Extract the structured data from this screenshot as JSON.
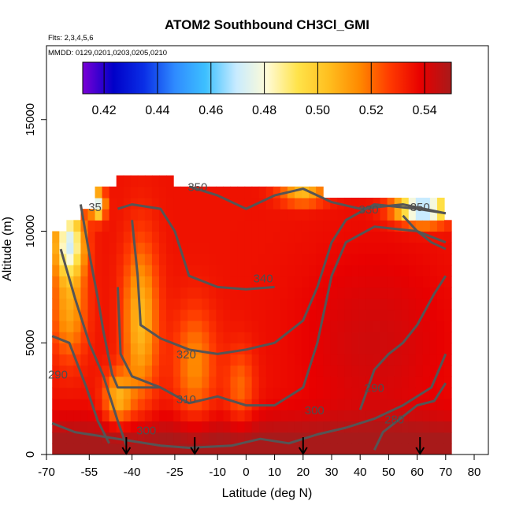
{
  "title": "ATOM2 Southbound CH3Cl_GMI",
  "flights_label": "Flts: 2,3,4,5,6",
  "dates_label": "MMDD: 0129,0201,0203,0205,0210",
  "colors": {
    "colormap": [
      "#7a00d6",
      "#0000c8",
      "#0a2fe6",
      "#2f8bff",
      "#3dc0ff",
      "#c8ebff",
      "#fffbd6",
      "#ffe34a",
      "#ffbf1f",
      "#ff8a00",
      "#ff3a00",
      "#e80000",
      "#a81a1a"
    ],
    "contour": "#555555",
    "background_fill": "#ff2a00"
  },
  "chart_data": {
    "type": "heatmap",
    "title": "ATOM2 Southbound CH3Cl_GMI",
    "xlabel": "Latitude (deg N)",
    "ylabel": "Altitude (m)",
    "xlim": [
      -70,
      85
    ],
    "ylim": [
      0,
      17500
    ],
    "x_ticks": [
      -70,
      -55,
      -40,
      -25,
      -10,
      0,
      10,
      20,
      30,
      40,
      50,
      60,
      70,
      80
    ],
    "x_tick_labels": [
      "-70",
      "-55",
      "-40",
      "-25",
      "-10",
      "0",
      "10",
      "20",
      "30",
      "40",
      "50",
      "60",
      "70",
      "80"
    ],
    "y_ticks": [
      0,
      5000,
      10000,
      15000
    ],
    "y_tick_labels": [
      "0",
      "5000",
      "10000",
      "15000"
    ],
    "colorbar": {
      "range": [
        0.412,
        0.55
      ],
      "ticks": [
        0.42,
        0.44,
        0.46,
        0.48,
        0.5,
        0.52,
        0.54
      ],
      "tick_labels": [
        "0.42",
        "0.44",
        "0.46",
        "0.48",
        "0.50",
        "0.52",
        "0.54"
      ]
    },
    "contour_labels": [
      {
        "text": "350",
        "lat": -17,
        "alt": 11800
      },
      {
        "text": "350",
        "lat": 61,
        "alt": 10900
      },
      {
        "text": "330",
        "lat": 43,
        "alt": 10800
      },
      {
        "text": "340",
        "lat": 6,
        "alt": 7700
      },
      {
        "text": "320",
        "lat": -21,
        "alt": 4300
      },
      {
        "text": "310",
        "lat": -21,
        "alt": 2300
      },
      {
        "text": "300",
        "lat": -35,
        "alt": 900
      },
      {
        "text": "300",
        "lat": 24,
        "alt": 1800
      },
      {
        "text": "290",
        "lat": -66,
        "alt": 3400
      },
      {
        "text": "290",
        "lat": 45,
        "alt": 2800
      },
      {
        "text": "280",
        "lat": 52,
        "alt": 1400
      },
      {
        "text": "35",
        "lat": -53,
        "alt": 10900
      }
    ],
    "flight_markers_lat": [
      -42,
      -18,
      20,
      61
    ],
    "grid": false,
    "legend": "none"
  }
}
